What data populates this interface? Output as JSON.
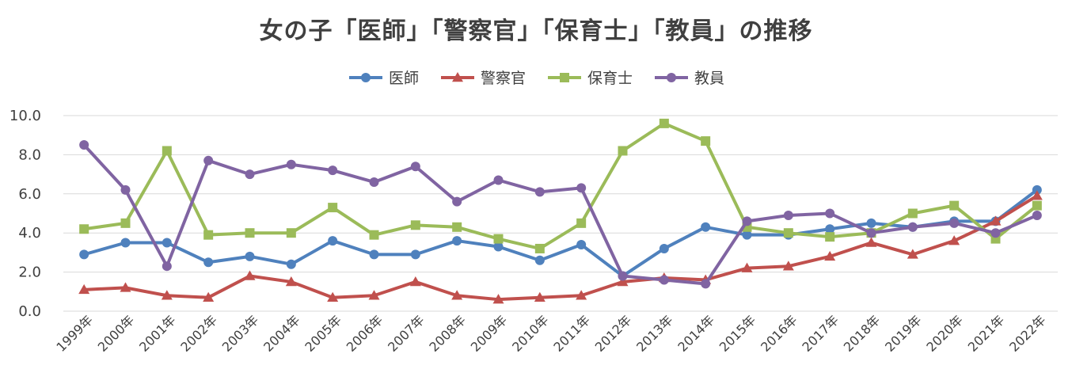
{
  "chart_data": {
    "type": "line",
    "title": "女の子「医師」「警察官」「保育士」「教員」の推移",
    "xlabel": "",
    "ylabel": "",
    "ylim": [
      0,
      10
    ],
    "yticks": [
      "0.0",
      "2.0",
      "4.0",
      "6.0",
      "8.0",
      "10.0"
    ],
    "grid": true,
    "legend_position": "top",
    "categories": [
      "1999年",
      "2000年",
      "2001年",
      "2002年",
      "2003年",
      "2004年",
      "2005年",
      "2006年",
      "2007年",
      "2008年",
      "2009年",
      "2010年",
      "2011年",
      "2012年",
      "2013年",
      "2014年",
      "2015年",
      "2016年",
      "2017年",
      "2018年",
      "2019年",
      "2020年",
      "2021年",
      "2022年"
    ],
    "series": [
      {
        "name": "医師",
        "color": "#4F81BD",
        "marker": "circle",
        "values": [
          2.9,
          3.5,
          3.5,
          2.5,
          2.8,
          2.4,
          3.6,
          2.9,
          2.9,
          3.6,
          3.3,
          2.6,
          3.4,
          1.8,
          3.2,
          4.3,
          3.9,
          3.9,
          4.2,
          4.5,
          4.3,
          4.6,
          4.6,
          6.2
        ]
      },
      {
        "name": "警察官",
        "color": "#C0504D",
        "marker": "triangle",
        "values": [
          1.1,
          1.2,
          0.8,
          0.7,
          1.8,
          1.5,
          0.7,
          0.8,
          1.5,
          0.8,
          0.6,
          0.7,
          0.8,
          1.5,
          1.7,
          1.6,
          2.2,
          2.3,
          2.8,
          3.5,
          2.9,
          3.6,
          4.6,
          5.9
        ]
      },
      {
        "name": "保育士",
        "color": "#9BBB59",
        "marker": "square",
        "values": [
          4.2,
          4.5,
          8.2,
          3.9,
          4.0,
          4.0,
          5.3,
          3.9,
          4.4,
          4.3,
          3.7,
          3.2,
          4.5,
          8.2,
          9.6,
          8.7,
          4.3,
          4.0,
          3.8,
          4.0,
          5.0,
          5.4,
          3.7,
          5.4
        ]
      },
      {
        "name": "教員",
        "color": "#8064A2",
        "marker": "circle",
        "values": [
          8.5,
          6.2,
          2.3,
          7.7,
          7.0,
          7.5,
          7.2,
          6.6,
          7.4,
          5.6,
          6.7,
          6.1,
          6.3,
          1.8,
          1.6,
          1.4,
          4.6,
          4.9,
          5.0,
          4.0,
          4.3,
          4.5,
          4.0,
          4.9
        ]
      }
    ]
  }
}
